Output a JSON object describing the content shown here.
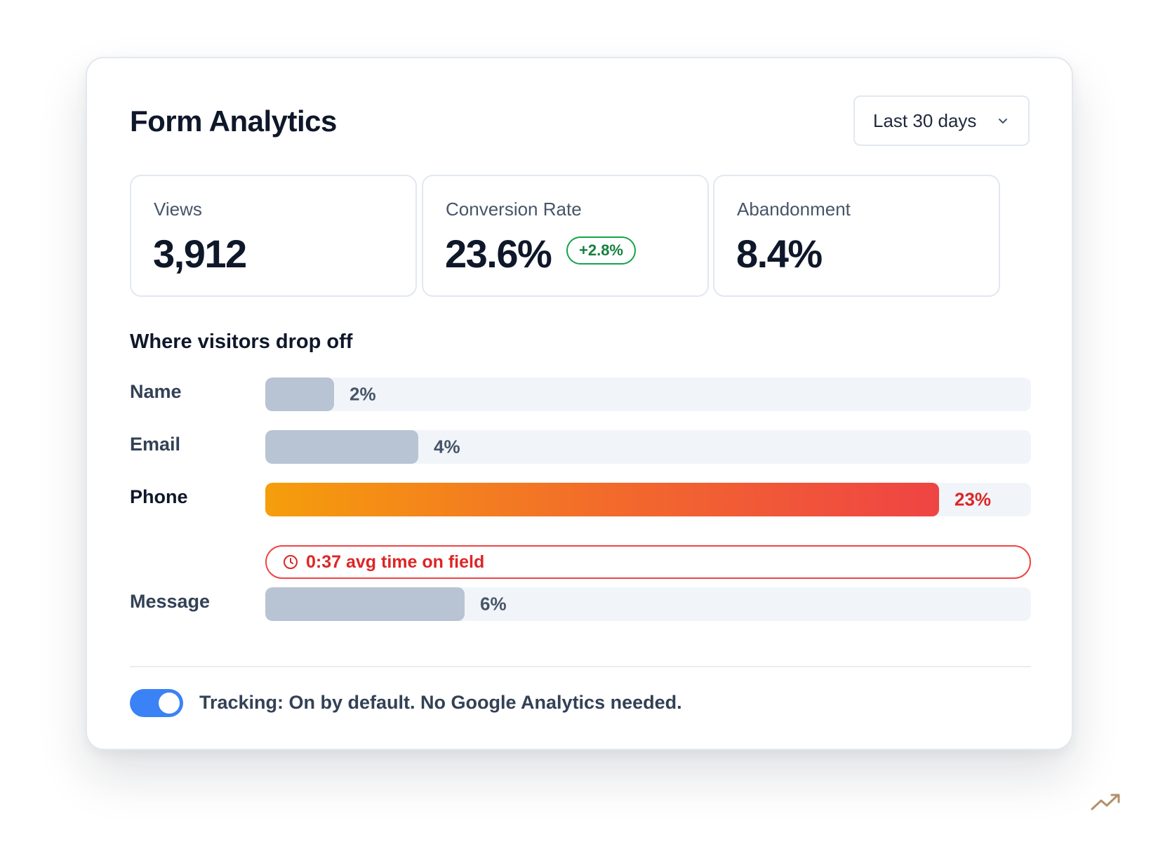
{
  "header": {
    "title": "Form Analytics",
    "range": {
      "selected": "Last 30 days"
    }
  },
  "stats": [
    {
      "label": "Views",
      "value": "3,912"
    },
    {
      "label": "Conversion Rate",
      "value": "23.6%",
      "delta": "+2.8%"
    },
    {
      "label": "Abandonment",
      "value": "8.4%"
    }
  ],
  "dropoff": {
    "title": "Where visitors drop off",
    "fields": [
      {
        "label": "Name",
        "pct_label": "2%",
        "fill_fraction": 0.09
      },
      {
        "label": "Email",
        "pct_label": "4%",
        "fill_fraction": 0.2
      },
      {
        "label": "Phone",
        "pct_label": "23%",
        "fill_fraction": 0.88,
        "highlight": true
      },
      {
        "label": "Message",
        "pct_label": "6%",
        "fill_fraction": 0.26
      }
    ],
    "phone_hint": "0:37 avg time on field"
  },
  "footer": {
    "tracking_text": "Tracking: On by default. No Google Analytics needed.",
    "tracking_enabled": true
  },
  "icons": {
    "range_dropdown": "chevron-down-icon",
    "hint": "clock-icon",
    "corner": "trending-up-icon"
  },
  "colors": {
    "accent": "#3b82f6",
    "positive": "#16a34a",
    "danger": "#ef4444",
    "bar_default": "#b8c4d3",
    "bar_hot_start": "#f59e0b",
    "bar_hot_end": "#ef4444"
  }
}
